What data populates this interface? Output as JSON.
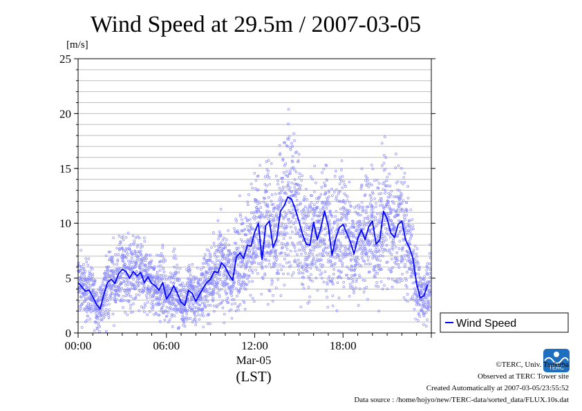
{
  "chart_data": {
    "type": "line",
    "title": "Wind Speed at 29.5m / 2007-03-05",
    "ylabel": "[m/s]",
    "xlabel": "(LST)",
    "date_label": "Mar-05",
    "ylim": [
      0,
      25
    ],
    "yticks": [
      0,
      5,
      10,
      15,
      20,
      25
    ],
    "xlim": [
      0,
      24
    ],
    "xticks": [
      {
        "value": 0,
        "label": "00:00"
      },
      {
        "value": 6,
        "label": "06:00"
      },
      {
        "value": 12,
        "label": "12:00"
      },
      {
        "value": 18,
        "label": "18:00"
      }
    ],
    "grid": true,
    "legend_placement": "right",
    "series": [
      {
        "name": "Wind Speed",
        "color": "#0000ff",
        "x": [
          0,
          0.25,
          0.5,
          0.75,
          1,
          1.25,
          1.5,
          1.75,
          2,
          2.25,
          2.5,
          2.75,
          3,
          3.25,
          3.5,
          3.75,
          4,
          4.25,
          4.5,
          4.75,
          5,
          5.25,
          5.5,
          5.75,
          6,
          6.25,
          6.5,
          6.75,
          7,
          7.25,
          7.5,
          7.75,
          8,
          8.25,
          8.5,
          8.75,
          9,
          9.25,
          9.5,
          9.75,
          10,
          10.25,
          10.5,
          10.75,
          11,
          11.25,
          11.5,
          11.75,
          12,
          12.25,
          12.5,
          12.75,
          13,
          13.25,
          13.5,
          13.75,
          14,
          14.25,
          14.5,
          14.75,
          15,
          15.25,
          15.5,
          15.75,
          16,
          16.25,
          16.5,
          16.75,
          17,
          17.25,
          17.5,
          17.75,
          18,
          18.25,
          18.5,
          18.75,
          19,
          19.25,
          19.5,
          19.75,
          20,
          20.25,
          20.5,
          20.75,
          21,
          21.25,
          21.5,
          21.75,
          22,
          22.25,
          22.5,
          22.75,
          23,
          23.25,
          23.5,
          23.75
        ],
        "y": [
          4.6,
          4.2,
          3.8,
          3.9,
          3.3,
          2.6,
          2.2,
          3.5,
          4.6,
          4.9,
          4.5,
          5.4,
          5.8,
          5.6,
          5.0,
          5.6,
          5.2,
          5.5,
          4.6,
          5.1,
          4.5,
          4.3,
          3.9,
          4.6,
          3.1,
          3.6,
          4.3,
          3.6,
          2.8,
          2.5,
          3.9,
          3.6,
          2.9,
          3.5,
          4.1,
          4.6,
          4.9,
          5.6,
          5.5,
          6.4,
          6.0,
          5.3,
          4.8,
          6.9,
          7.3,
          6.8,
          8.0,
          7.9,
          9.2,
          10.0,
          6.7,
          9.8,
          10.2,
          7.8,
          8.6,
          11.1,
          11.6,
          12.4,
          12.2,
          11.3,
          10.2,
          9.0,
          8.1,
          8.0,
          10.1,
          8.5,
          9.6,
          11.1,
          9.7,
          7.1,
          8.6,
          9.6,
          9.9,
          9.1,
          8.3,
          7.2,
          8.6,
          9.4,
          8.5,
          9.7,
          10.2,
          8.1,
          8.5,
          11.1,
          10.4,
          9.1,
          8.7,
          9.9,
          10.2,
          8.5,
          7.8,
          6.8,
          4.5,
          3.2,
          3.4,
          4.4
        ]
      }
    ]
  },
  "legend": {
    "label": "Wind Speed"
  },
  "footer": {
    "copyright": "©TERC, Univ. Tsukuba",
    "observed": "Observed at TERC Tower site",
    "created": "Created Automatically at 2007-03-05/23:55:52",
    "source": "Data source : /home/hojyo/new/TERC-data/sorted_data/FLUX.10s.dat"
  },
  "logo": {
    "text": "TERC"
  }
}
